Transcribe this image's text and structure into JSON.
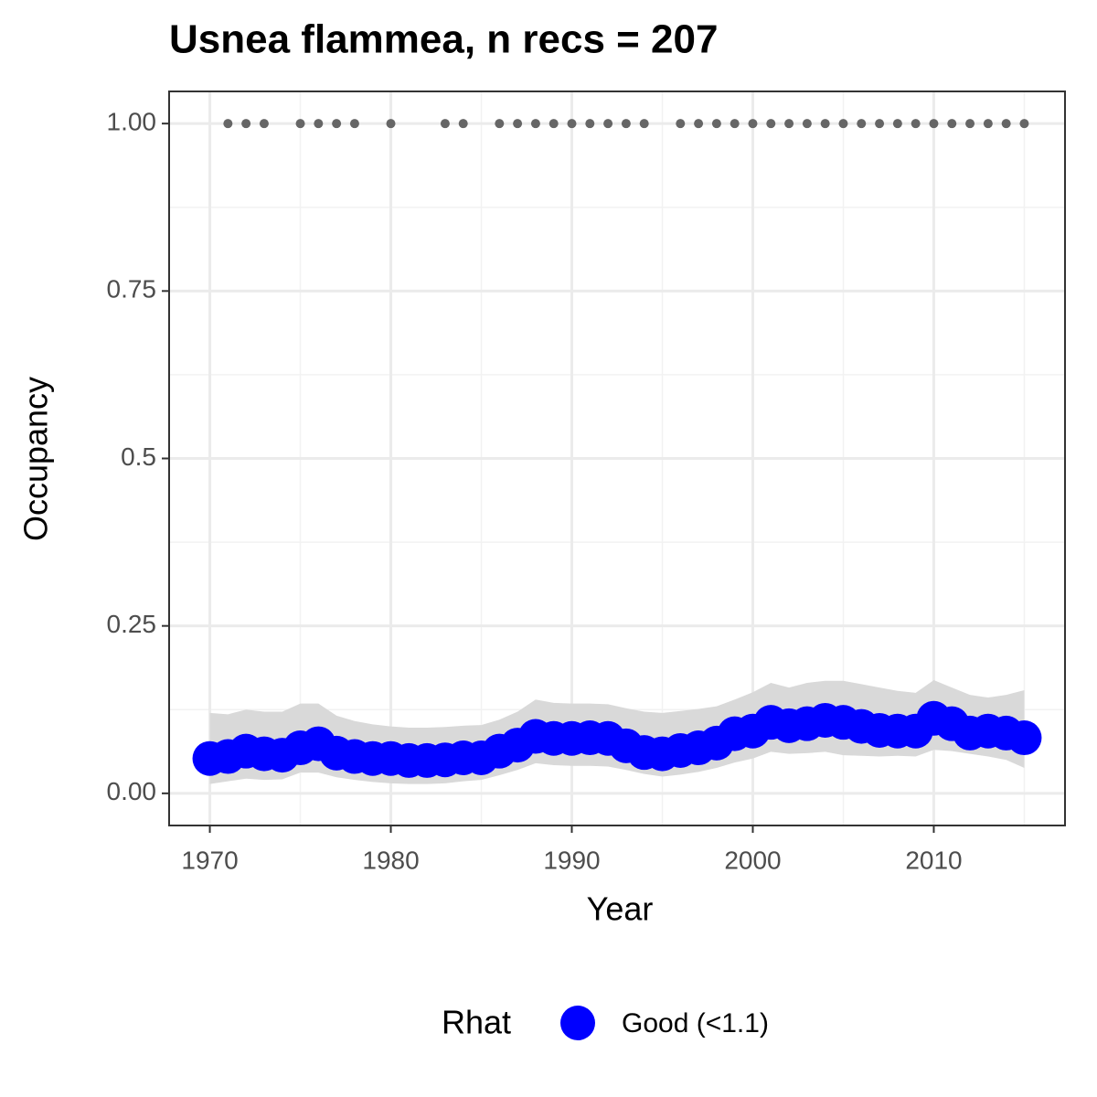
{
  "chart_data": {
    "type": "line",
    "title": "Usnea flammea, n recs = 207",
    "x_label": "Year",
    "y_label": "Occupancy",
    "legend_title": "Rhat",
    "legend_position": "bottom",
    "x": [
      1970,
      1971,
      1972,
      1973,
      1974,
      1975,
      1976,
      1977,
      1978,
      1979,
      1980,
      1981,
      1982,
      1983,
      1984,
      1985,
      1986,
      1987,
      1988,
      1989,
      1990,
      1991,
      1992,
      1993,
      1994,
      1995,
      1996,
      1997,
      1998,
      1999,
      2000,
      2001,
      2002,
      2003,
      2004,
      2005,
      2006,
      2007,
      2008,
      2009,
      2010,
      2011,
      2012,
      2013,
      2014,
      2015
    ],
    "series": [
      {
        "name": "Good (<1.1)",
        "color": "#0000ff",
        "band_color": "#d9d9d9",
        "values": [
          0.052,
          0.055,
          0.063,
          0.059,
          0.057,
          0.068,
          0.074,
          0.06,
          0.055,
          0.052,
          0.052,
          0.049,
          0.049,
          0.05,
          0.053,
          0.053,
          0.063,
          0.072,
          0.085,
          0.082,
          0.082,
          0.083,
          0.082,
          0.071,
          0.061,
          0.059,
          0.064,
          0.068,
          0.075,
          0.089,
          0.093,
          0.106,
          0.101,
          0.104,
          0.109,
          0.106,
          0.1,
          0.094,
          0.093,
          0.093,
          0.112,
          0.104,
          0.09,
          0.093,
          0.09,
          0.083
        ],
        "lower": [
          0.014,
          0.018,
          0.022,
          0.02,
          0.021,
          0.031,
          0.031,
          0.024,
          0.02,
          0.017,
          0.015,
          0.014,
          0.014,
          0.015,
          0.018,
          0.02,
          0.027,
          0.035,
          0.045,
          0.042,
          0.041,
          0.041,
          0.04,
          0.035,
          0.029,
          0.025,
          0.028,
          0.032,
          0.038,
          0.046,
          0.052,
          0.062,
          0.059,
          0.06,
          0.062,
          0.057,
          0.056,
          0.055,
          0.056,
          0.055,
          0.065,
          0.063,
          0.059,
          0.055,
          0.05,
          0.038
        ],
        "upper": [
          0.12,
          0.118,
          0.125,
          0.122,
          0.122,
          0.134,
          0.134,
          0.116,
          0.108,
          0.103,
          0.1,
          0.098,
          0.098,
          0.099,
          0.101,
          0.102,
          0.11,
          0.122,
          0.14,
          0.135,
          0.134,
          0.134,
          0.133,
          0.127,
          0.122,
          0.12,
          0.123,
          0.126,
          0.13,
          0.14,
          0.151,
          0.165,
          0.158,
          0.165,
          0.168,
          0.168,
          0.163,
          0.158,
          0.153,
          0.15,
          0.169,
          0.158,
          0.147,
          0.143,
          0.147,
          0.154
        ]
      }
    ],
    "records": {
      "color": "#666666",
      "x": [
        1971,
        1972,
        1973,
        1975,
        1976,
        1977,
        1978,
        1980,
        1983,
        1984,
        1986,
        1987,
        1988,
        1989,
        1990,
        1991,
        1992,
        1993,
        1994,
        1996,
        1997,
        1998,
        1999,
        2000,
        2001,
        2002,
        2003,
        2004,
        2005,
        2006,
        2007,
        2008,
        2009,
        2010,
        2011,
        2012,
        2013,
        2014,
        2015
      ],
      "values": [
        1,
        1,
        1,
        1,
        1,
        1,
        1,
        1,
        1,
        1,
        1,
        1,
        1,
        1,
        1,
        1,
        1,
        1,
        1,
        1,
        1,
        1,
        1,
        1,
        1,
        1,
        1,
        1,
        1,
        1,
        1,
        1,
        1,
        1,
        1,
        1,
        1,
        1,
        1
      ]
    },
    "xlim": [
      1967.75,
      2017.25
    ],
    "ylim": [
      -0.048,
      1.048
    ],
    "xticks": [
      1970,
      1980,
      1990,
      2000,
      2010
    ],
    "yticks": [
      {
        "value": 0,
        "label": "0.00"
      },
      0.25,
      0.5,
      0.75,
      {
        "value": 1,
        "label": "1.00"
      }
    ],
    "grid": true,
    "minor_grid": true
  }
}
